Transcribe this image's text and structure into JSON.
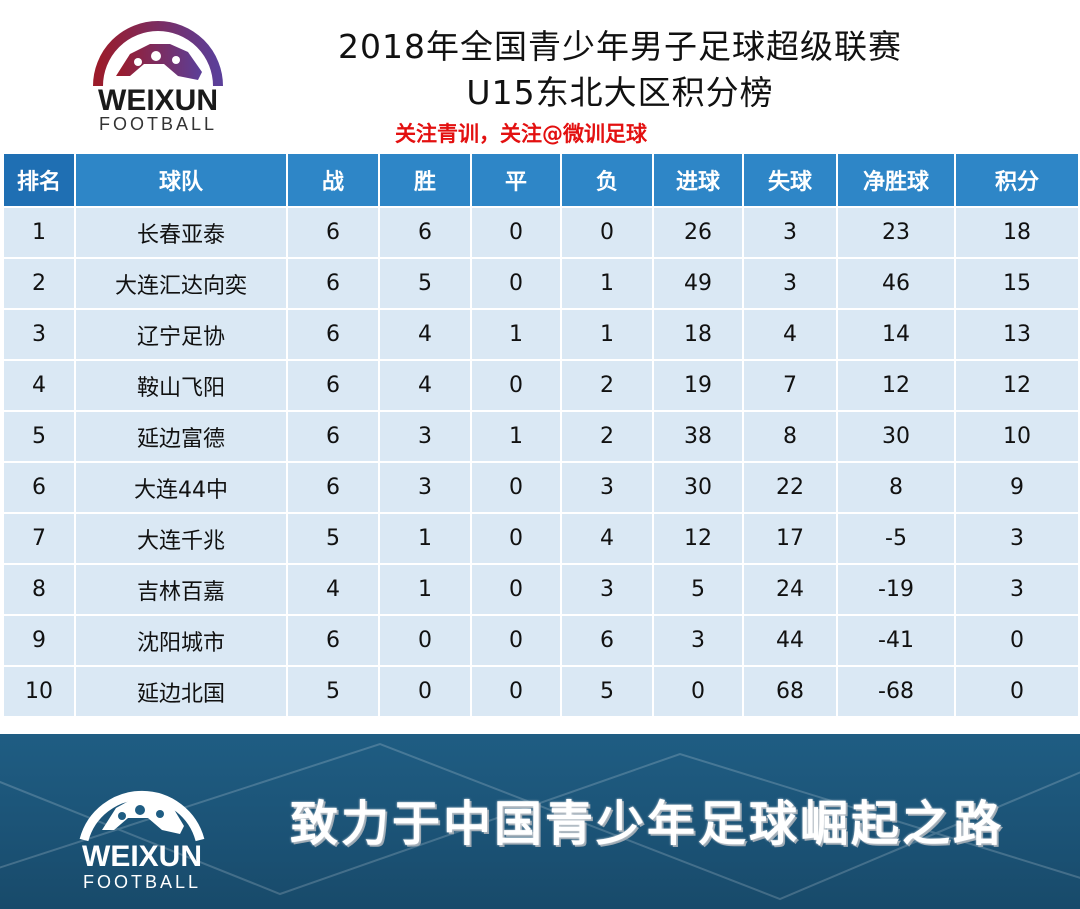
{
  "header": {
    "logo": {
      "wordmark": "WEIXUN",
      "submark": "FOOTBALL"
    },
    "title_line1": "2018年全国青少年男子足球超级联赛",
    "title_line2": "U15东北大区积分榜",
    "tagline": "关注青训，关注@微训足球"
  },
  "table": {
    "columns": [
      "排名",
      "球队",
      "战",
      "胜",
      "平",
      "负",
      "进球",
      "失球",
      "净胜球",
      "积分"
    ],
    "rows": [
      [
        "1",
        "长春亚泰",
        "6",
        "6",
        "0",
        "0",
        "26",
        "3",
        "23",
        "18"
      ],
      [
        "2",
        "大连汇达向奕",
        "6",
        "5",
        "0",
        "1",
        "49",
        "3",
        "46",
        "15"
      ],
      [
        "3",
        "辽宁足协",
        "6",
        "4",
        "1",
        "1",
        "18",
        "4",
        "14",
        "13"
      ],
      [
        "4",
        "鞍山飞阳",
        "6",
        "4",
        "0",
        "2",
        "19",
        "7",
        "12",
        "12"
      ],
      [
        "5",
        "延边富德",
        "6",
        "3",
        "1",
        "2",
        "38",
        "8",
        "30",
        "10"
      ],
      [
        "6",
        "大连44中",
        "6",
        "3",
        "0",
        "3",
        "30",
        "22",
        "8",
        "9"
      ],
      [
        "7",
        "大连千兆",
        "5",
        "1",
        "0",
        "4",
        "12",
        "17",
        "-5",
        "3"
      ],
      [
        "8",
        "吉林百嘉",
        "4",
        "1",
        "0",
        "3",
        "5",
        "24",
        "-19",
        "3"
      ],
      [
        "9",
        "沈阳城市",
        "6",
        "0",
        "0",
        "6",
        "3",
        "44",
        "-41",
        "0"
      ],
      [
        "10",
        "延边北国",
        "5",
        "0",
        "0",
        "5",
        "0",
        "68",
        "-68",
        "0"
      ]
    ]
  },
  "footer": {
    "logo": {
      "wordmark": "WEIXUN",
      "submark": "FOOTBALL"
    },
    "slogan": "致力于中国青少年足球崛起之路"
  },
  "colors": {
    "header_bg": "#2e86c7",
    "row_bg": "#dae8f4",
    "tagline": "#e31010",
    "footer_bg": "#1f5d83",
    "logo_red": "#9b1b2a",
    "logo_purple": "#6a4a9a"
  }
}
